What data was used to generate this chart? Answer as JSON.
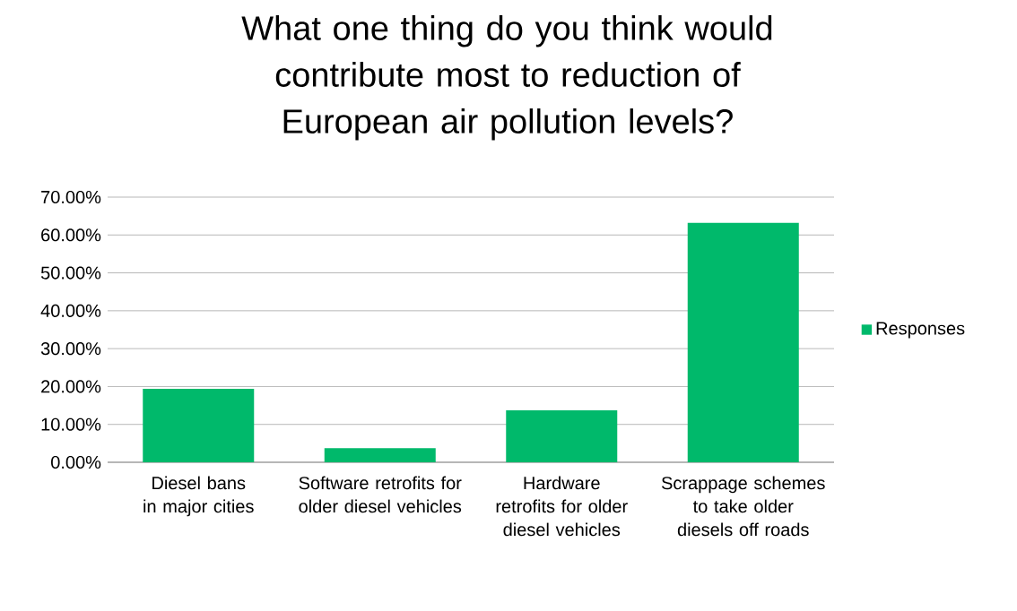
{
  "chart_data": {
    "type": "bar",
    "title": "What one thing do you think would contribute most to reduction of European air pollution levels?",
    "categories": [
      "Diesel bans in major cities",
      "Software retrofits for older diesel vehicles",
      "Hardware retrofits for older diesel vehicles",
      "Scrappage schemes to take older diesels off roads"
    ],
    "series": [
      {
        "name": "Responses",
        "color": "#00b96b",
        "values": [
          19.4,
          3.7,
          13.7,
          63.2
        ]
      }
    ],
    "ylim": [
      0,
      70
    ],
    "yticks": [
      {
        "value": 0,
        "label": "0.00%"
      },
      {
        "value": 10,
        "label": "10.00%"
      },
      {
        "value": 20,
        "label": "20.00%"
      },
      {
        "value": 30,
        "label": "30.00%"
      },
      {
        "value": 40,
        "label": "40.00%"
      },
      {
        "value": 50,
        "label": "50.00%"
      },
      {
        "value": 60,
        "label": "60.00%"
      },
      {
        "value": 70,
        "label": "70.00%"
      }
    ],
    "grid": "y",
    "legend": "right"
  }
}
